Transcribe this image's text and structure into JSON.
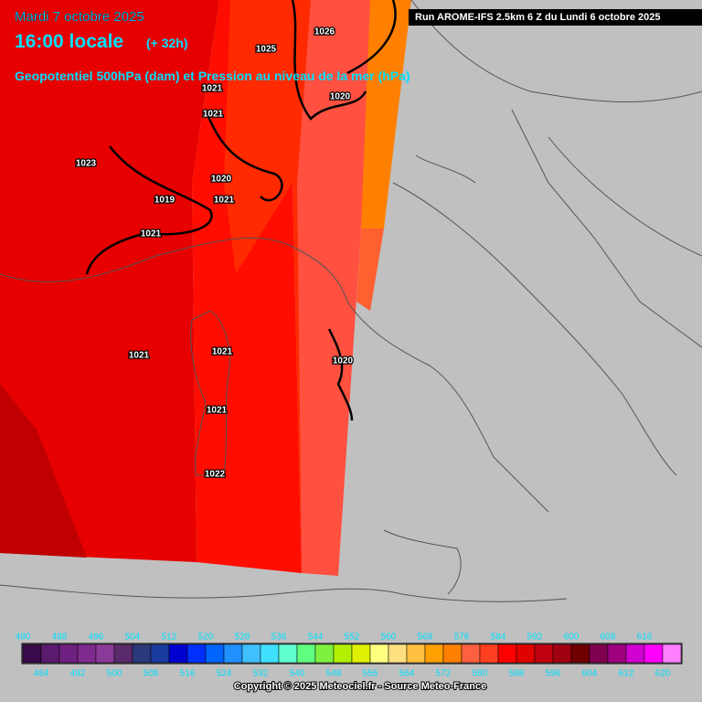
{
  "header": {
    "date": "Mardi 7 octobre 2025",
    "time": "16:00 locale",
    "lead": "(+ 32h)",
    "subtitle": "Geopotentiel 500hPa (dam) et Pression au niveau de la mer (hPa)",
    "run": "Run AROME-IFS 2.5km 6 Z du Lundi 6 octobre 2025"
  },
  "pressure_labels": [
    "1026",
    "1025",
    "1021",
    "1020",
    "1021",
    "1023",
    "1020",
    "1019",
    "1021",
    "1021",
    "1021",
    "1020",
    "1021",
    "1021",
    "1022"
  ],
  "colorbar": {
    "labels": [
      "480",
      "484",
      "488",
      "492",
      "496",
      "500",
      "504",
      "508",
      "512",
      "516",
      "520",
      "524",
      "528",
      "532",
      "536",
      "540",
      "544",
      "548",
      "552",
      "556",
      "560",
      "564",
      "568",
      "572",
      "576",
      "580",
      "584",
      "588",
      "592",
      "596",
      "600",
      "604",
      "608",
      "612",
      "616",
      "620"
    ],
    "colors": [
      "#3a0a4a",
      "#5a1a6e",
      "#6e2080",
      "#7e2a8e",
      "#8a3a98",
      "#5a2a6a",
      "#2a3a7a",
      "#1a3aa0",
      "#0000d0",
      "#0030ff",
      "#0064ff",
      "#2090ff",
      "#40c0ff",
      "#40e0ff",
      "#60ffd0",
      "#60ff80",
      "#80f040",
      "#b0f000",
      "#e0f000",
      "#ffff80",
      "#ffe080",
      "#ffc040",
      "#ffa000",
      "#ff8000",
      "#ff6040",
      "#ff4020",
      "#ff0000",
      "#e00000",
      "#c00010",
      "#a00010",
      "#700000",
      "#800050",
      "#a00080",
      "#d000d0",
      "#ff00ff",
      "#ff80ff"
    ]
  },
  "footer": {
    "copyright": "Copyright © 2025 Meteociel.fr - Source Meteo-France"
  }
}
